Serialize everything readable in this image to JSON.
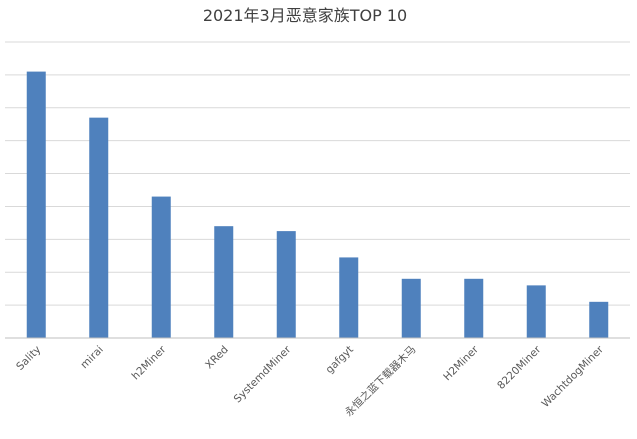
{
  "chart_data": {
    "type": "bar",
    "title": "2021年3月恶意家族TOP 10",
    "xlabel": "",
    "ylabel": "",
    "categories": [
      "Sality",
      "mirai",
      "h2Miner",
      "XRed",
      "SystemdMiner",
      "gafgyt",
      "永恒之蓝下载器木马",
      "H2Miner",
      "8220Miner",
      "WachtdogMiner"
    ],
    "values": [
      8.1,
      6.7,
      4.3,
      3.4,
      3.25,
      2.45,
      1.8,
      1.8,
      1.6,
      1.1
    ],
    "ylim": [
      0,
      9
    ],
    "grid": true,
    "legend": "none",
    "colors": {
      "bar": "#4f81bd",
      "grid": "#d9d9d9",
      "axis": "#bfbfbf",
      "title": "#404040",
      "tick": "#595959"
    }
  }
}
